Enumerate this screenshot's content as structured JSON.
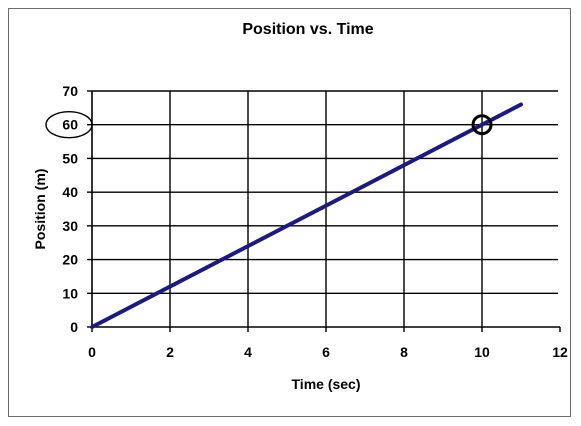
{
  "chart_data": {
    "type": "line",
    "title": "Position vs. Time",
    "xlabel": "Time (sec)",
    "ylabel": "Position (m)",
    "xlim": [
      0,
      12
    ],
    "ylim": [
      0,
      70
    ],
    "x_ticks": [
      0,
      2,
      4,
      6,
      8,
      10,
      12
    ],
    "y_ticks": [
      0,
      10,
      20,
      30,
      40,
      50,
      60,
      70
    ],
    "grid": true,
    "series": [
      {
        "x": [
          0,
          11
        ],
        "values": [
          0,
          66
        ],
        "color": "#1b1b7a"
      }
    ],
    "annotations": [
      {
        "type": "circle-marker",
        "x": 10,
        "y": 60
      },
      {
        "type": "tick-label-ellipse",
        "axis": "y",
        "value": 60
      }
    ]
  }
}
